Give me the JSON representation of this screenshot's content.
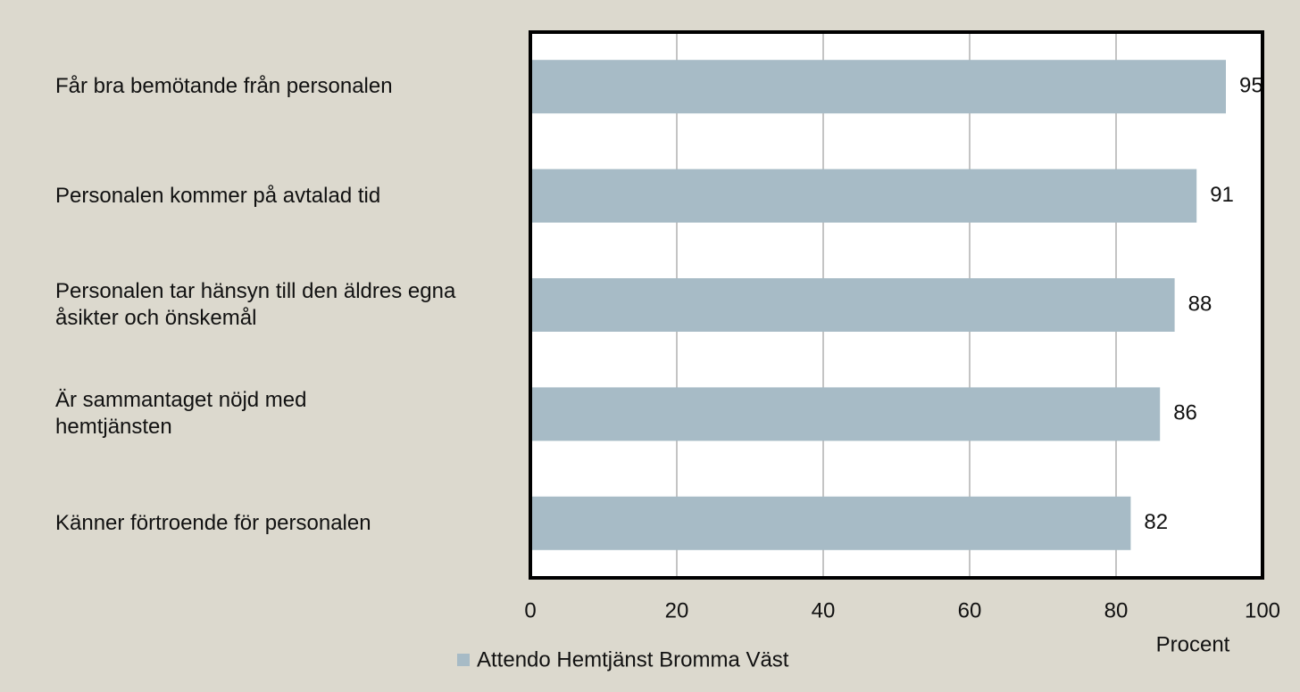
{
  "chart_data": {
    "type": "bar",
    "orientation": "horizontal",
    "categories": [
      "Får bra bemötande från personalen",
      "Personalen kommer på avtalad tid",
      "Personalen tar hänsyn till den äldres egna åsikter och önskemål",
      "Är sammantaget nöjd med hemtjänsten",
      "Känner förtroende för personalen"
    ],
    "series": [
      {
        "name": "Attendo Hemtjänst Bromma Väst",
        "color": "#a7bbc6",
        "values": [
          95,
          91,
          88,
          86,
          82
        ]
      }
    ],
    "xlim": [
      0,
      100
    ],
    "xticks": [
      0,
      20,
      40,
      60,
      80,
      100
    ],
    "xlabel": "Procent",
    "grid": true,
    "show_values": true,
    "legend": "bottom"
  }
}
